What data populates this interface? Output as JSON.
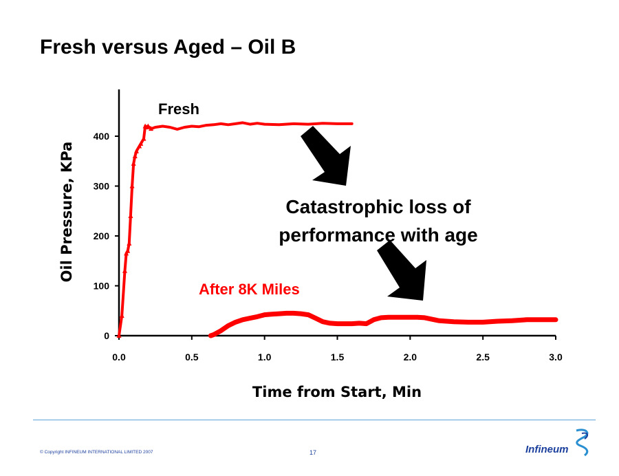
{
  "slide": {
    "title": "Fresh versus Aged – Oil B",
    "copyright": "© Copyright INFINEUM INTERNATIONAL LIMITED 2007",
    "page_number": "17",
    "logo_text": "Infineum"
  },
  "colors": {
    "series": "#ff0000",
    "axis": "#000000",
    "rule": "#5ba3d6",
    "footer_text": "#1b3f9c"
  },
  "chart_data": {
    "type": "line",
    "title": "",
    "xlabel": "Time from Start, Min",
    "ylabel": "Oil Pressure, KPa",
    "xlim": [
      0,
      3.0
    ],
    "ylim": [
      0,
      450
    ],
    "x_ticks": [
      "0.0",
      "0.5",
      "1.0",
      "1.5",
      "2.0",
      "2.5",
      "3.0"
    ],
    "y_ticks": [
      "0",
      "100",
      "200",
      "300",
      "400"
    ],
    "grid": false,
    "series": [
      {
        "name": "Fresh",
        "x": [
          0.0,
          0.02,
          0.04,
          0.05,
          0.06,
          0.07,
          0.08,
          0.09,
          0.1,
          0.11,
          0.12,
          0.14,
          0.15,
          0.17,
          0.18,
          0.19,
          0.2,
          0.22,
          0.25,
          0.3,
          0.35,
          0.4,
          0.45,
          0.5,
          0.55,
          0.6,
          0.65,
          0.7,
          0.75,
          0.8,
          0.85,
          0.9,
          0.95,
          1.0,
          1.1,
          1.2,
          1.3,
          1.4,
          1.5,
          1.6
        ],
        "y": [
          0,
          40,
          130,
          165,
          170,
          185,
          240,
          300,
          345,
          360,
          370,
          380,
          385,
          395,
          420,
          418,
          420,
          415,
          418,
          420,
          418,
          414,
          418,
          420,
          419,
          422,
          423,
          425,
          423,
          425,
          427,
          424,
          426,
          424,
          423,
          425,
          424,
          426,
          425,
          425
        ]
      },
      {
        "name": "After 8K Miles",
        "x": [
          0.63,
          0.65,
          0.7,
          0.75,
          0.8,
          0.85,
          0.9,
          0.95,
          1.0,
          1.05,
          1.1,
          1.15,
          1.2,
          1.25,
          1.3,
          1.35,
          1.4,
          1.45,
          1.5,
          1.55,
          1.6,
          1.65,
          1.7,
          1.75,
          1.8,
          1.85,
          1.9,
          2.0,
          2.05,
          2.1,
          2.2,
          2.3,
          2.4,
          2.5,
          2.6,
          2.7,
          2.8,
          2.9,
          3.0
        ],
        "y": [
          0,
          2,
          10,
          20,
          27,
          32,
          35,
          38,
          42,
          43,
          44,
          45,
          45,
          44,
          42,
          35,
          28,
          25,
          24,
          24,
          24,
          25,
          24,
          32,
          36,
          37,
          37,
          37,
          37,
          36,
          30,
          28,
          27,
          27,
          29,
          30,
          32,
          32,
          32
        ]
      }
    ],
    "annotations": {
      "fresh_label": "Fresh",
      "aged_label": "After 8K Miles",
      "callout_line1": "Catastrophic loss of",
      "callout_line2": "performance with age"
    }
  }
}
